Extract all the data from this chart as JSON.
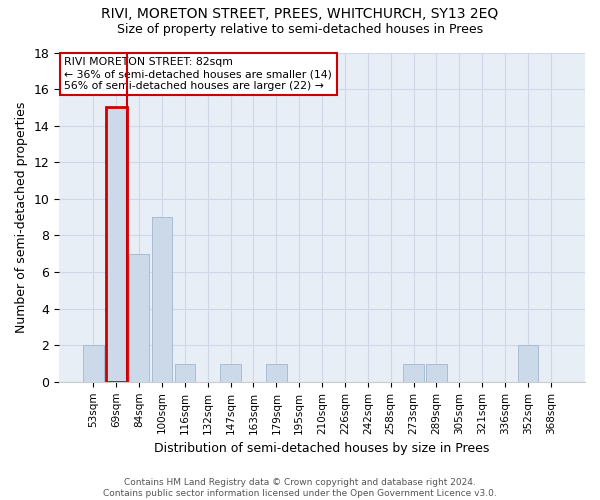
{
  "title": "RIVI, MORETON STREET, PREES, WHITCHURCH, SY13 2EQ",
  "subtitle": "Size of property relative to semi-detached houses in Prees",
  "xlabel": "Distribution of semi-detached houses by size in Prees",
  "ylabel": "Number of semi-detached properties",
  "categories": [
    "53sqm",
    "69sqm",
    "84sqm",
    "100sqm",
    "116sqm",
    "132sqm",
    "147sqm",
    "163sqm",
    "179sqm",
    "195sqm",
    "210sqm",
    "226sqm",
    "242sqm",
    "258sqm",
    "273sqm",
    "289sqm",
    "305sqm",
    "321sqm",
    "336sqm",
    "352sqm",
    "368sqm"
  ],
  "values": [
    2,
    15,
    7,
    9,
    1,
    0,
    1,
    0,
    1,
    0,
    0,
    0,
    0,
    0,
    1,
    1,
    0,
    0,
    0,
    2,
    0
  ],
  "bar_color": "#ccd9e8",
  "bar_edgecolor": "#a8bdd4",
  "highlight_index": 1,
  "highlight_line_color": "#cc0000",
  "highlight_bar_edgecolor": "#cc0000",
  "ylim": [
    0,
    18
  ],
  "yticks": [
    0,
    2,
    4,
    6,
    8,
    10,
    12,
    14,
    16,
    18
  ],
  "annotation_title": "RIVI MORETON STREET: 82sqm",
  "annotation_line1": "← 36% of semi-detached houses are smaller (14)",
  "annotation_line2": "56% of semi-detached houses are larger (22) →",
  "annotation_box_edgecolor": "#cc0000",
  "footer_line1": "Contains HM Land Registry data © Crown copyright and database right 2024.",
  "footer_line2": "Contains public sector information licensed under the Open Government Licence v3.0.",
  "grid_color": "#d0d8e8",
  "background_color": "#e8eef6",
  "title_fontsize": 10,
  "subtitle_fontsize": 9,
  "bar_width": 0.9
}
